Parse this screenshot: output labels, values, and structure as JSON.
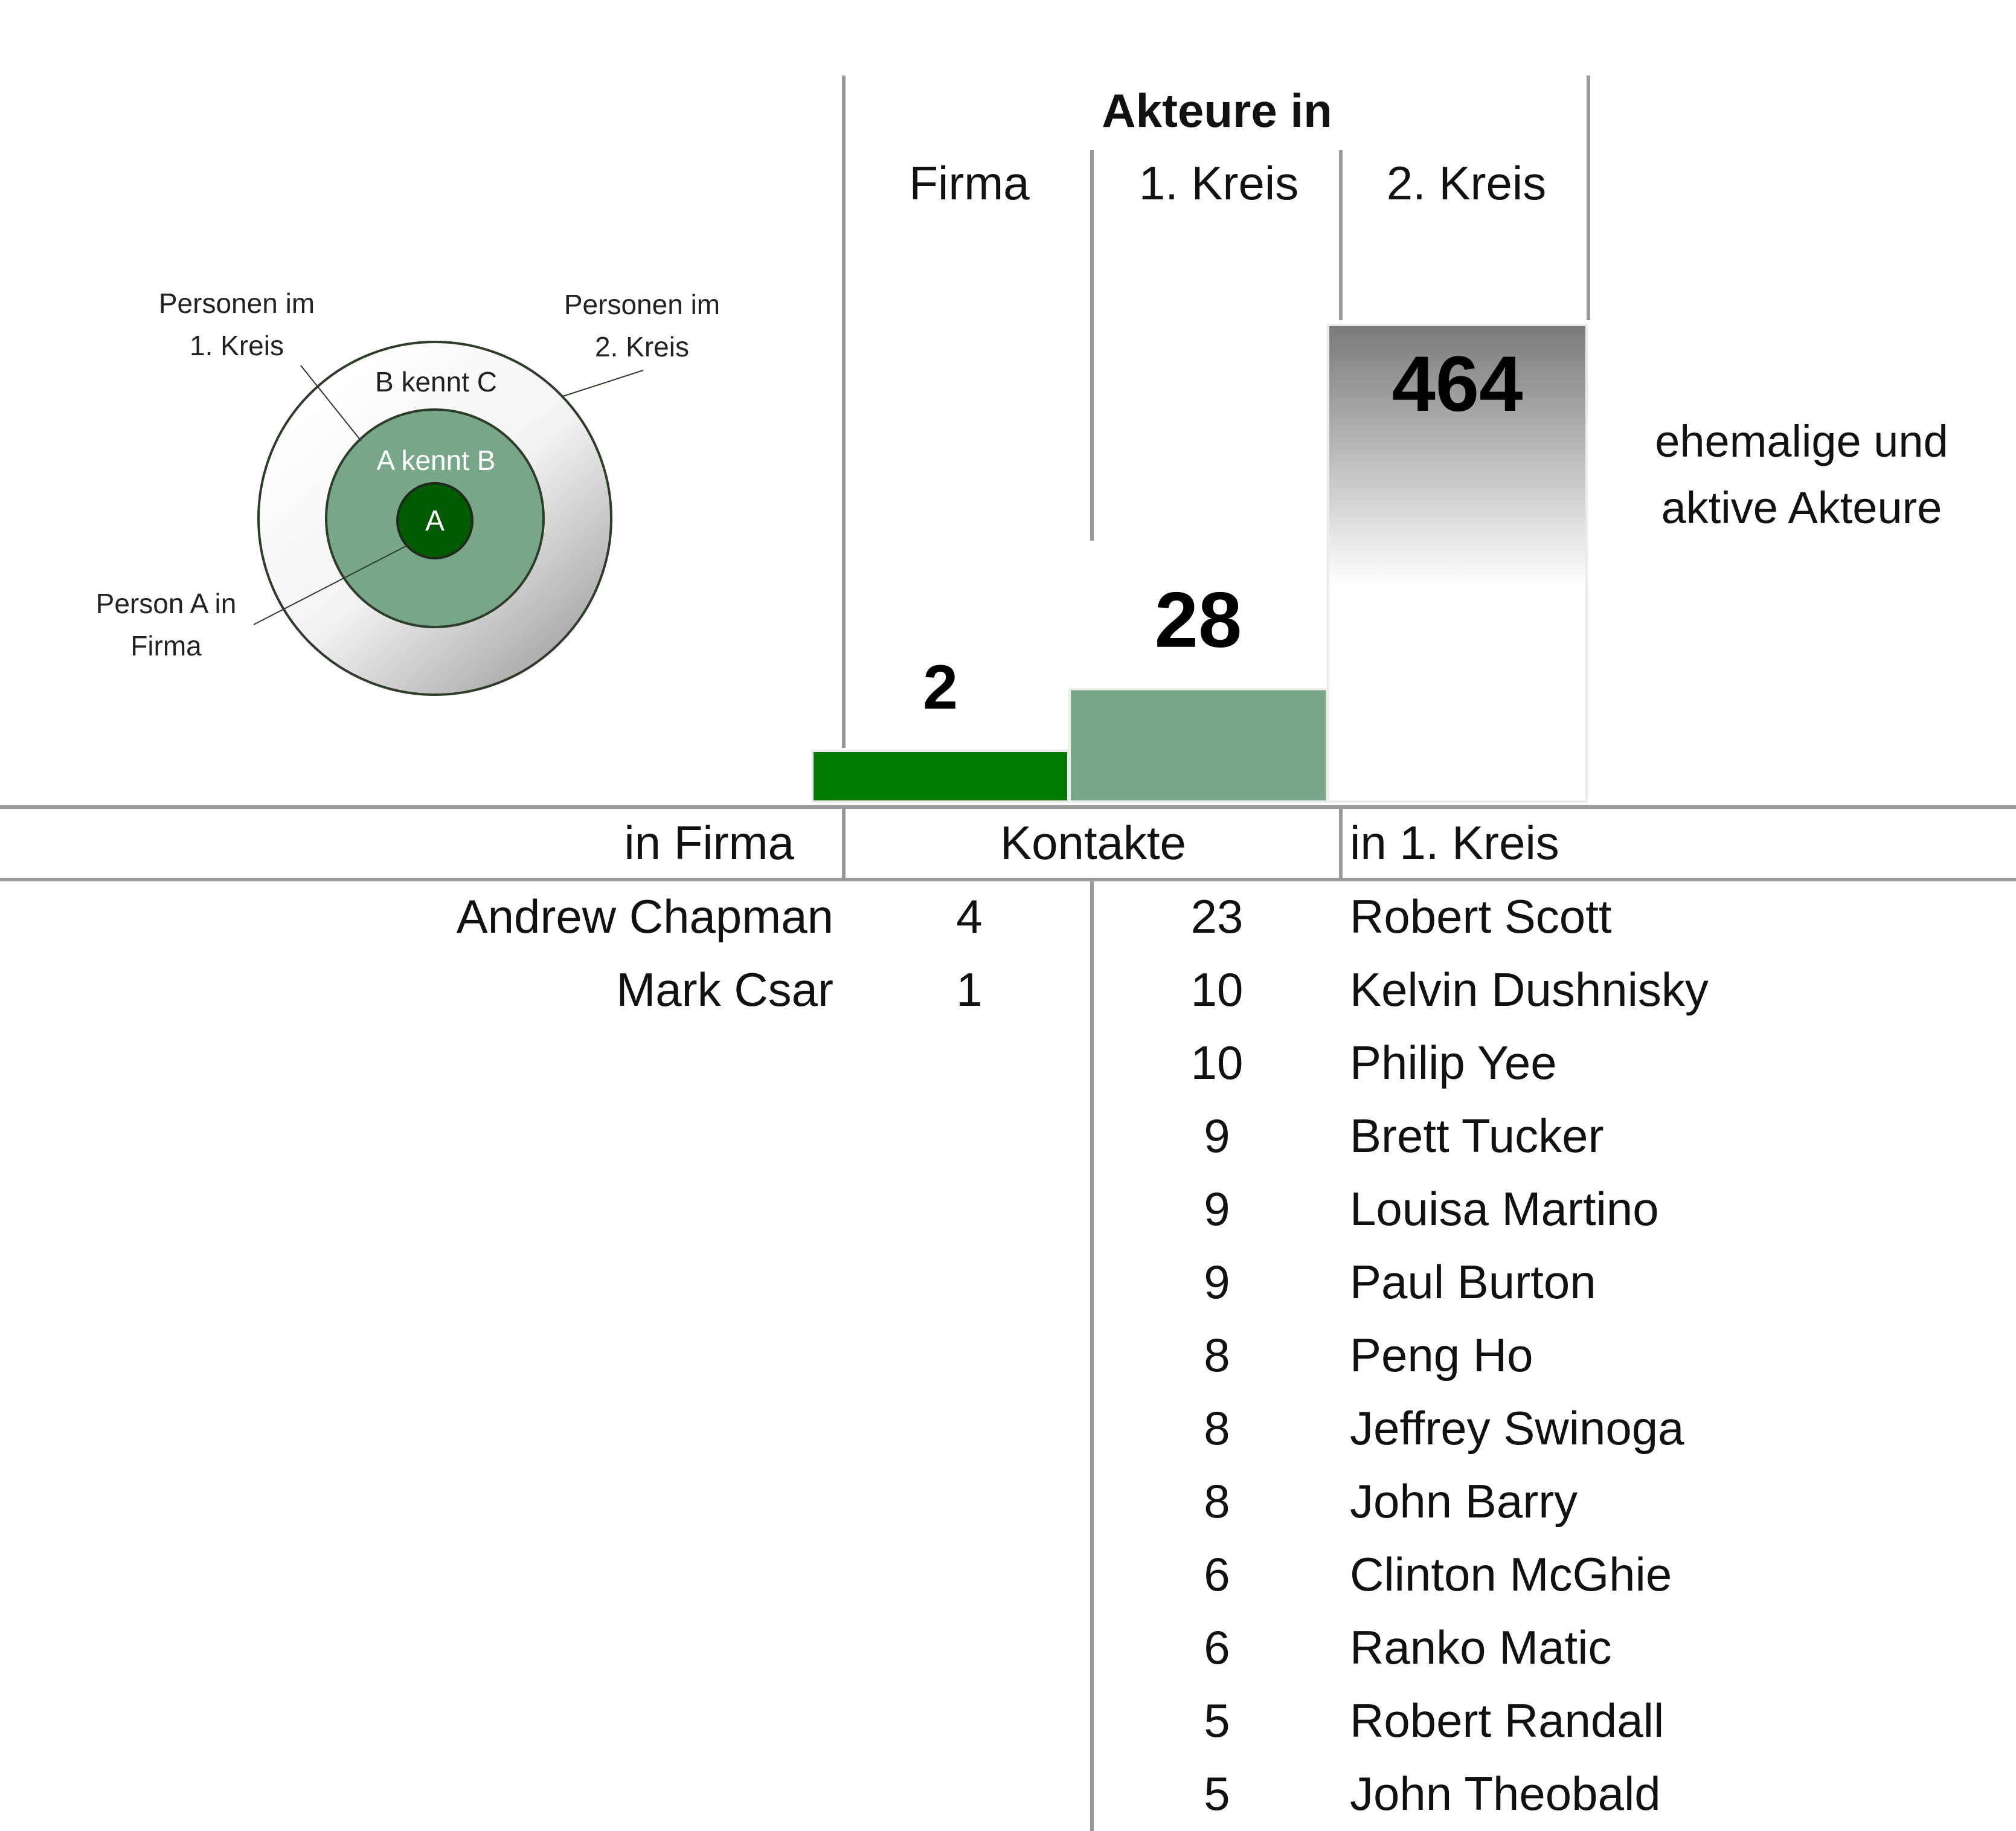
{
  "header": {
    "title": "Akteure in",
    "columns": [
      "Firma",
      "1. Kreis",
      "2. Kreis"
    ]
  },
  "legend_diagram": {
    "labels": {
      "first_circle": [
        "Personen im",
        "1. Kreis"
      ],
      "second_circle": [
        "Personen im",
        "2. Kreis"
      ],
      "person_a": [
        "Person A in",
        "Firma"
      ]
    },
    "rings": {
      "outer": "B kennt C",
      "middle": "A kennt B",
      "inner": "A"
    }
  },
  "side_note": [
    "ehemalige und",
    "aktive Akteure"
  ],
  "chart_data": {
    "type": "bar",
    "categories": [
      "Firma",
      "1. Kreis",
      "2. Kreis"
    ],
    "values": [
      2,
      28,
      464
    ],
    "value_labels": [
      "2",
      "28",
      "464"
    ],
    "note": "bar heights are not drawn to a linear scale"
  },
  "table": {
    "headers": {
      "left": "in Firma",
      "middle": "Kontakte",
      "right": "in 1. Kreis"
    },
    "firma_rows": [
      {
        "name": "Andrew Chapman",
        "contacts": "4"
      },
      {
        "name": "Mark Csar",
        "contacts": "1"
      }
    ],
    "kreis_rows": [
      {
        "contacts": "23",
        "name": "Robert Scott"
      },
      {
        "contacts": "10",
        "name": "Kelvin Dushnisky"
      },
      {
        "contacts": "10",
        "name": "Philip Yee"
      },
      {
        "contacts": "9",
        "name": "Brett Tucker"
      },
      {
        "contacts": "9",
        "name": "Louisa Martino"
      },
      {
        "contacts": "9",
        "name": "Paul Burton"
      },
      {
        "contacts": "8",
        "name": "Peng Ho"
      },
      {
        "contacts": "8",
        "name": "Jeffrey Swinoga"
      },
      {
        "contacts": "8",
        "name": "John Barry"
      },
      {
        "contacts": "6",
        "name": "Clinton McGhie"
      },
      {
        "contacts": "6",
        "name": "Ranko Matic"
      },
      {
        "contacts": "5",
        "name": "Robert Randall"
      },
      {
        "contacts": "5",
        "name": "John Theobald"
      }
    ]
  },
  "colors": {
    "firma_bar": "#007a00",
    "kreis1_bar": "#78a688",
    "kreis2_bar_top": "#7a7a7a",
    "rule": "#9a9a9a",
    "ring_inner": "#005a00",
    "ring_middle": "#78a688",
    "ring_outline": "#2e3d2a"
  }
}
